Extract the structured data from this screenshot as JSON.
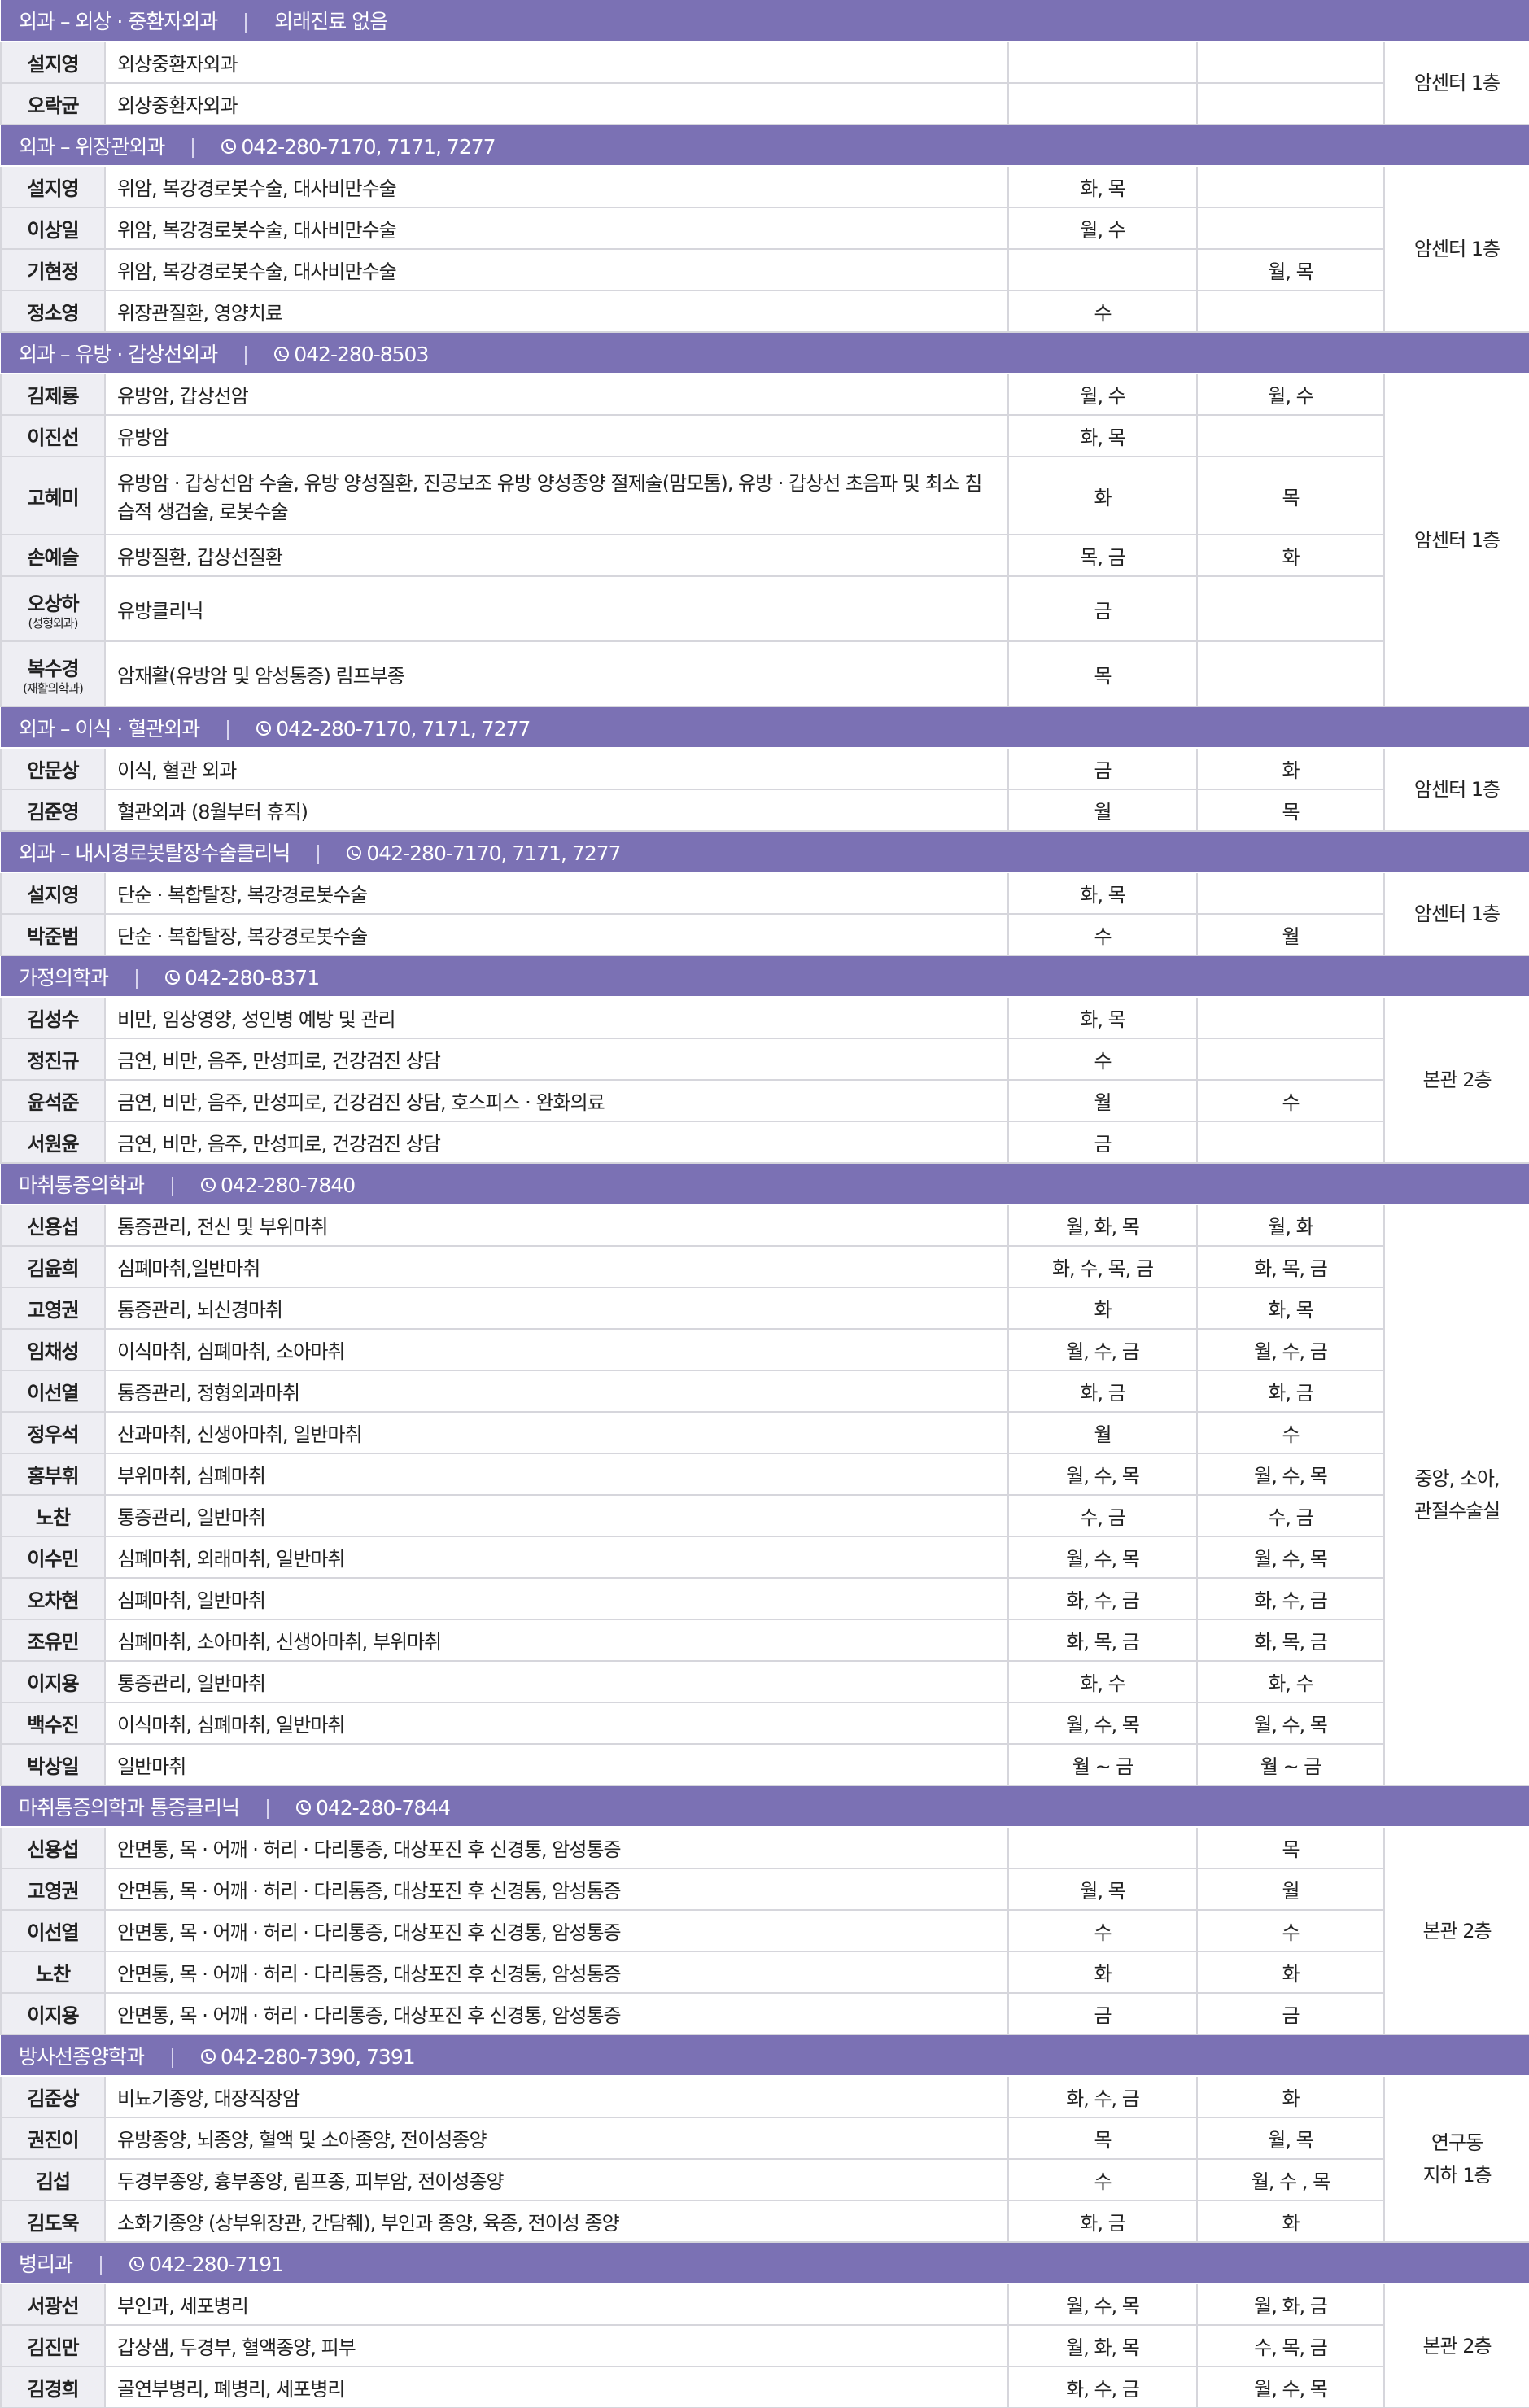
{
  "sections": [
    {
      "title": "외과 – 외상 · 중환자외과",
      "note": "외래진료 없음",
      "location": [
        "암센터 1층"
      ],
      "rows": [
        {
          "name": "설지영",
          "specialty": "외상중환자외과",
          "am": null,
          "pm": null
        },
        {
          "name": "오락균",
          "specialty": "외상중환자외과",
          "am": null,
          "pm": null
        }
      ]
    },
    {
      "title": "외과 – 위장관외과",
      "phone": "042-280-7170, 7171, 7277",
      "location": [
        "암센터 1층"
      ],
      "rows": [
        {
          "name": "설지영",
          "specialty": "위암, 복강경로봇수술, 대사비만수술",
          "am": "화, 목",
          "pm": null
        },
        {
          "name": "이상일",
          "specialty": "위암, 복강경로봇수술, 대사비만수술",
          "am": "월, 수",
          "pm": null
        },
        {
          "name": "기현정",
          "specialty": "위암, 복강경로봇수술, 대사비만수술",
          "am": null,
          "pm": "월, 목"
        },
        {
          "name": "정소영",
          "specialty": "위장관질환, 영양치료",
          "am": "수",
          "pm": null
        }
      ]
    },
    {
      "title": "외과 – 유방 · 갑상선외과",
      "phone": "042-280-8503",
      "location": [
        "암센터 1층"
      ],
      "rows": [
        {
          "name": "김제룡",
          "specialty": "유방암, 갑상선암",
          "am": "월, 수",
          "pm": "월, 수"
        },
        {
          "name": "이진선",
          "specialty": "유방암",
          "am": "화, 목",
          "pm": null
        },
        {
          "name": "고혜미",
          "specialty": "유방암 · 갑상선암 수술, 유방 양성질환, 진공보조 유방 양성종양 절제술(맘모톰), 유방 · 갑상선 초음파 및 최소 침습적 생검술, 로봇수술",
          "am": "화",
          "pm": "목"
        },
        {
          "name": "손예슬",
          "specialty": "유방질환, 갑상선질환",
          "am": "목, 금",
          "pm": "화"
        },
        {
          "name": "오상하",
          "sub": "(성형외과)",
          "specialty": "유방클리닉",
          "am": "금",
          "pm": null
        },
        {
          "name": "복수경",
          "sub": "(재활의학과)",
          "specialty": "암재활(유방암 및 암성통증) 림프부종",
          "am": "목",
          "pm": null
        }
      ]
    },
    {
      "title": "외과 – 이식 · 혈관외과",
      "phone": "042-280-7170, 7171, 7277",
      "location": [
        "암센터 1층"
      ],
      "rows": [
        {
          "name": "안문상",
          "specialty": "이식, 혈관 외과",
          "am": "금",
          "pm": "화"
        },
        {
          "name": "김준영",
          "specialty": "혈관외과 (8월부터 휴직)",
          "am": "월",
          "pm": "목"
        }
      ]
    },
    {
      "title": "외과 – 내시경로봇탈장수술클리닉",
      "phone": "042-280-7170, 7171, 7277",
      "location": [
        "암센터 1층"
      ],
      "rows": [
        {
          "name": "설지영",
          "specialty": "단순 · 복합탈장, 복강경로봇수술",
          "am": "화, 목",
          "pm": null
        },
        {
          "name": "박준범",
          "specialty": "단순 · 복합탈장, 복강경로봇수술",
          "am": "수",
          "pm": "월"
        }
      ]
    },
    {
      "title": "가정의학과",
      "phone": "042-280-8371",
      "location": [
        "본관 2층"
      ],
      "rows": [
        {
          "name": "김성수",
          "specialty": "비만, 임상영양, 성인병 예방 및 관리",
          "am": "화, 목",
          "pm": null
        },
        {
          "name": "정진규",
          "specialty": "금연, 비만, 음주, 만성피로, 건강검진 상담",
          "am": "수",
          "pm": null
        },
        {
          "name": "윤석준",
          "specialty": "금연, 비만, 음주, 만성피로, 건강검진 상담, 호스피스 · 완화의료",
          "am": "월",
          "pm": "수"
        },
        {
          "name": "서원윤",
          "specialty": "금연, 비만, 음주, 만성피로, 건강검진 상담",
          "am": "금",
          "pm": null
        }
      ]
    },
    {
      "title": "마취통증의학과",
      "phone": "042-280-7840",
      "location": [
        "중앙, 소아,",
        "관절수술실"
      ],
      "rows": [
        {
          "name": "신용섭",
          "specialty": "통증관리, 전신 및 부위마취",
          "am": "월, 화, 목",
          "pm": "월, 화"
        },
        {
          "name": "김윤희",
          "specialty": "심폐마취,일반마취",
          "am": "화, 수, 목, 금",
          "pm": "화, 목, 금"
        },
        {
          "name": "고영권",
          "specialty": "통증관리, 뇌신경마취",
          "am": "화",
          "pm": "화, 목"
        },
        {
          "name": "임채성",
          "specialty": "이식마취, 심폐마취, 소아마취",
          "am": "월, 수, 금",
          "pm": "월, 수, 금"
        },
        {
          "name": "이선열",
          "specialty": "통증관리, 정형외과마취",
          "am": "화, 금",
          "pm": "화, 금"
        },
        {
          "name": "정우석",
          "specialty": "산과마취, 신생아마취, 일반마취",
          "am": "월",
          "pm": "수"
        },
        {
          "name": "홍부휘",
          "specialty": "부위마취, 심폐마취",
          "am": "월, 수, 목",
          "pm": "월, 수, 목"
        },
        {
          "name": "노찬",
          "specialty": "통증관리, 일반마취",
          "am": "수, 금",
          "pm": "수, 금"
        },
        {
          "name": "이수민",
          "specialty": "심폐마취, 외래마취, 일반마취",
          "am": "월, 수, 목",
          "pm": "월, 수, 목"
        },
        {
          "name": "오차현",
          "specialty": "심폐마취, 일반마취",
          "am": "화, 수, 금",
          "pm": "화, 수, 금"
        },
        {
          "name": "조유민",
          "specialty": "심폐마취, 소아마취, 신생아마취, 부위마취",
          "am": "화, 목, 금",
          "pm": "화, 목, 금"
        },
        {
          "name": "이지용",
          "specialty": "통증관리, 일반마취",
          "am": "화, 수",
          "pm": "화, 수"
        },
        {
          "name": "백수진",
          "specialty": "이식마취, 심폐마취, 일반마취",
          "am": "월, 수, 목",
          "pm": "월, 수, 목"
        },
        {
          "name": "박상일",
          "specialty": "일반마취",
          "am": "월 ~ 금",
          "pm": "월 ~ 금"
        }
      ]
    },
    {
      "title": "마취통증의학과 통증클리닉",
      "phone": "042-280-7844",
      "location": [
        "본관 2층"
      ],
      "rows": [
        {
          "name": "신용섭",
          "specialty": "안면통, 목 · 어깨 · 허리 · 다리통증, 대상포진 후 신경통, 암성통증",
          "am": null,
          "pm": "목"
        },
        {
          "name": "고영권",
          "specialty": "안면통, 목 · 어깨 · 허리 · 다리통증, 대상포진 후 신경통, 암성통증",
          "am": "월, 목",
          "pm": "월"
        },
        {
          "name": "이선열",
          "specialty": "안면통, 목 · 어깨 · 허리 · 다리통증, 대상포진 후 신경통, 암성통증",
          "am": "수",
          "pm": "수"
        },
        {
          "name": "노찬",
          "specialty": "안면통, 목 · 어깨 · 허리 · 다리통증, 대상포진 후 신경통, 암성통증",
          "am": "화",
          "pm": "화"
        },
        {
          "name": "이지용",
          "specialty": "안면통, 목 · 어깨 · 허리 · 다리통증, 대상포진 후 신경통, 암성통증",
          "am": "금",
          "pm": "금"
        }
      ]
    },
    {
      "title": "방사선종양학과",
      "phone": "042-280-7390, 7391",
      "location": [
        "연구동",
        "지하 1층"
      ],
      "rows": [
        {
          "name": "김준상",
          "specialty": "비뇨기종양, 대장직장암",
          "am": "화, 수, 금",
          "pm": "화"
        },
        {
          "name": "권진이",
          "specialty": "유방종양, 뇌종양, 혈액 및 소아종양, 전이성종양",
          "am": "목",
          "pm": "월, 목"
        },
        {
          "name": "김섭",
          "specialty": "두경부종양, 흉부종양, 림프종, 피부암, 전이성종양",
          "am": "수",
          "pm": "월, 수 , 목"
        },
        {
          "name": "김도욱",
          "specialty": "소화기종양 (상부위장관, 간담췌), 부인과 종양, 육종, 전이성 종양",
          "am": "화, 금",
          "pm": "화"
        }
      ]
    },
    {
      "title": "병리과",
      "phone": "042-280-7191",
      "location": [
        "본관 2층"
      ],
      "rows": [
        {
          "name": "서광선",
          "specialty": "부인과, 세포병리",
          "am": "월, 수, 목",
          "pm": "월, 화, 금"
        },
        {
          "name": "김진만",
          "specialty": "갑상샘, 두경부, 혈액종양, 피부",
          "am": "월, 화, 목",
          "pm": "수, 목, 금"
        },
        {
          "name": "김경희",
          "specialty": "골연부병리, 폐병리, 세포병리",
          "am": "화, 수, 금",
          "pm": "월, 수, 목"
        }
      ]
    }
  ]
}
